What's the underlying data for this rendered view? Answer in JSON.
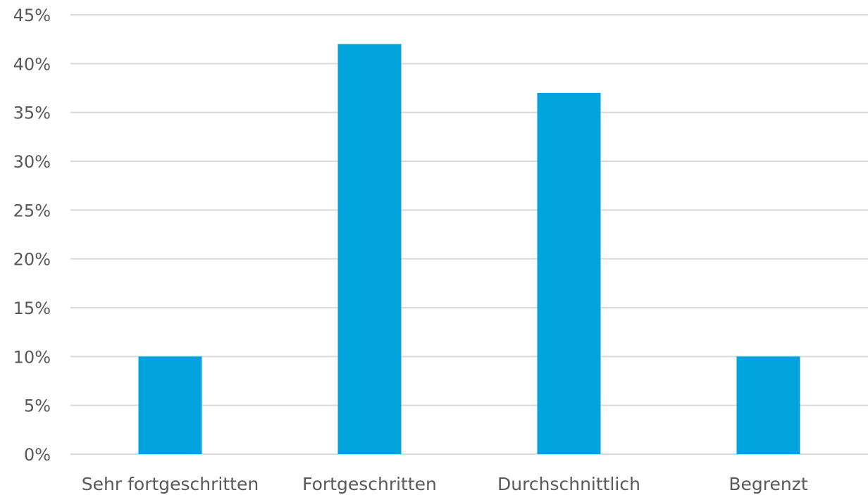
{
  "chart_data": {
    "type": "bar",
    "categories": [
      "Sehr fortgeschritten",
      "Fortgeschritten",
      "Durchschnittlich",
      "Begrenzt"
    ],
    "values": [
      10,
      42,
      37,
      10
    ],
    "ylim": [
      0,
      45
    ],
    "y_ticks": [
      "0%",
      "5%",
      "10%",
      "15%",
      "20%",
      "25%",
      "30%",
      "35%",
      "40%",
      "45%"
    ],
    "y_tick_values": [
      0,
      5,
      10,
      15,
      20,
      25,
      30,
      35,
      40,
      45
    ],
    "grid": true,
    "legend": "none",
    "bar_color": "#00a3db",
    "grid_color": "#d9d9d9",
    "label_color": "#595959"
  }
}
